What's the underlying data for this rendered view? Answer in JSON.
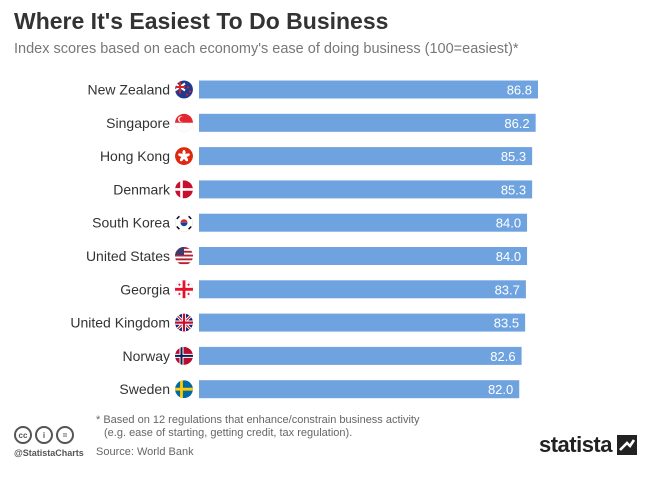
{
  "header": {
    "title": "Where It's Easiest To Do Business",
    "subtitle": "Index scores based on each economy's ease of doing business (100=easiest)*"
  },
  "chart_data": {
    "type": "bar",
    "orientation": "horizontal",
    "categories": [
      "New Zealand",
      "Singapore",
      "Hong Kong",
      "Denmark",
      "South Korea",
      "United States",
      "Georgia",
      "United Kingdom",
      "Norway",
      "Sweden"
    ],
    "values": [
      86.8,
      86.2,
      85.3,
      85.3,
      84.0,
      84.0,
      83.7,
      83.5,
      82.6,
      82.0
    ],
    "value_labels": [
      "86.8",
      "86.2",
      "85.3",
      "85.3",
      "84.0",
      "84.0",
      "83.7",
      "83.5",
      "82.6",
      "82.0"
    ],
    "xlim": [
      0,
      86.8
    ],
    "bar_color": "#6fa3e0",
    "flag_icons": [
      "new-zealand-flag-icon",
      "singapore-flag-icon",
      "hong-kong-flag-icon",
      "denmark-flag-icon",
      "south-korea-flag-icon",
      "united-states-flag-icon",
      "georgia-flag-icon",
      "united-kingdom-flag-icon",
      "norway-flag-icon",
      "sweden-flag-icon"
    ],
    "grid": false
  },
  "footer": {
    "note_line1": "* Based on 12 regulations that enhance/constrain business activity",
    "note_line2": "(e.g. ease of starting, getting credit, tax regulation).",
    "source": "Source: World Bank",
    "handle": "@StatistaCharts",
    "cc_icons": [
      "cc-icon",
      "by-icon",
      "nd-icon"
    ],
    "brand": "statista"
  }
}
